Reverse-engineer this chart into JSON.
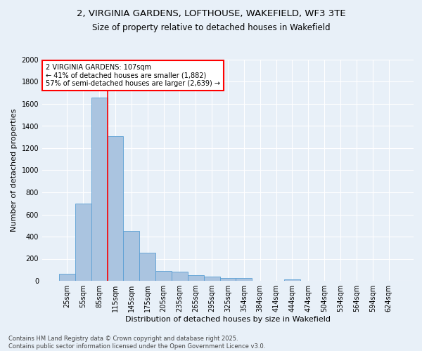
{
  "title": "2, VIRGINIA GARDENS, LOFTHOUSE, WAKEFIELD, WF3 3TE",
  "subtitle": "Size of property relative to detached houses in Wakefield",
  "xlabel": "Distribution of detached houses by size in Wakefield",
  "ylabel": "Number of detached properties",
  "categories": [
    "25sqm",
    "55sqm",
    "85sqm",
    "115sqm",
    "145sqm",
    "175sqm",
    "205sqm",
    "235sqm",
    "265sqm",
    "295sqm",
    "325sqm",
    "354sqm",
    "384sqm",
    "414sqm",
    "444sqm",
    "474sqm",
    "504sqm",
    "534sqm",
    "564sqm",
    "594sqm",
    "624sqm"
  ],
  "values": [
    65,
    700,
    1660,
    1310,
    450,
    255,
    90,
    85,
    50,
    40,
    28,
    25,
    0,
    0,
    15,
    0,
    0,
    0,
    0,
    0,
    0
  ],
  "bar_color": "#aac4e0",
  "bar_edge_color": "#5a9fd4",
  "vline_x_index": 2,
  "vline_color": "red",
  "ylim": [
    0,
    2000
  ],
  "yticks": [
    0,
    200,
    400,
    600,
    800,
    1000,
    1200,
    1400,
    1600,
    1800,
    2000
  ],
  "annotation_text": "2 VIRGINIA GARDENS: 107sqm\n← 41% of detached houses are smaller (1,882)\n57% of semi-detached houses are larger (2,639) →",
  "annotation_box_color": "white",
  "annotation_box_edge_color": "red",
  "footer_line1": "Contains HM Land Registry data © Crown copyright and database right 2025.",
  "footer_line2": "Contains public sector information licensed under the Open Government Licence v3.0.",
  "bg_color": "#e8f0f8",
  "plot_bg_color": "#e8f0f8",
  "grid_color": "white",
  "title_fontsize": 9.5,
  "subtitle_fontsize": 8.5,
  "axis_label_fontsize": 8,
  "tick_fontsize": 7,
  "annotation_fontsize": 7,
  "footer_fontsize": 6
}
